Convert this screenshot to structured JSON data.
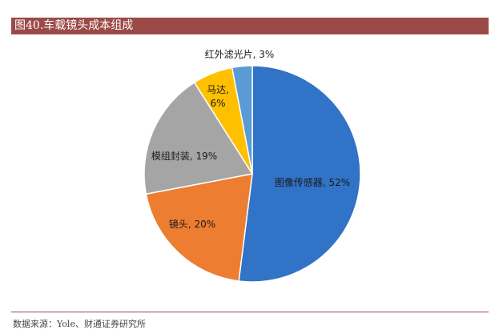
{
  "header": {
    "title": "图40.车载镜头成本组成"
  },
  "footer": {
    "source": "数据来源：Yole、财通证券研究所"
  },
  "chart_data": {
    "type": "pie",
    "categories": [
      "图像传感器",
      "镜头",
      "模组封装",
      "马达",
      "红外滤光片"
    ],
    "values": [
      52,
      20,
      19,
      6,
      3
    ],
    "labels": [
      "图像传感器, 52%",
      "镜头, 20%",
      "模组封装, 19%",
      "马达,|6%",
      "红外滤光片, 3%"
    ],
    "colors": [
      "#3173c6",
      "#ed7d31",
      "#a5a5a5",
      "#ffc000",
      "#5b9bd5"
    ],
    "start": "12 o'clock, clockwise"
  }
}
